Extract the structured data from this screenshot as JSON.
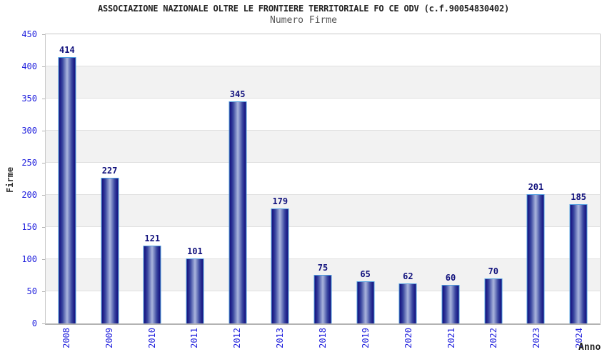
{
  "chart_data": {
    "type": "bar",
    "title": "ASSOCIAZIONE NAZIONALE OLTRE LE FRONTIERE TERRITORIALE FO CE ODV (c.f.90054830402)",
    "subtitle": "Numero Firme",
    "xlabel": "Anno",
    "ylabel": "Firme",
    "categories": [
      "2008",
      "2009",
      "2010",
      "2011",
      "2012",
      "2013",
      "2018",
      "2019",
      "2020",
      "2021",
      "2022",
      "2023",
      "2024"
    ],
    "values": [
      414,
      227,
      121,
      101,
      345,
      179,
      75,
      65,
      62,
      60,
      70,
      201,
      185
    ],
    "ylim": [
      0,
      450
    ],
    "ytick_step": 50,
    "yticks": [
      450,
      400,
      350,
      300,
      250,
      200,
      150,
      100,
      50,
      0
    ],
    "grid": "horizontal gridlines with alternating gray/white bands",
    "legend_position": "none",
    "value_labels": "above bars"
  },
  "colors": {
    "tick_label": "#2222dd",
    "value_label": "#12127d",
    "bar_border": "#4f9ddf",
    "bar_dark": "#14147a",
    "bar_light": "#aab4dd",
    "band_gray": "#f2f2f2",
    "gridline": "#e0e0e0",
    "plot_border": "#c9c9c9",
    "axis_line": "#b3b3b3",
    "title_color": "#222222",
    "subtitle_color": "#555555",
    "axis_title_color": "#333333",
    "background": "#ffffff"
  }
}
